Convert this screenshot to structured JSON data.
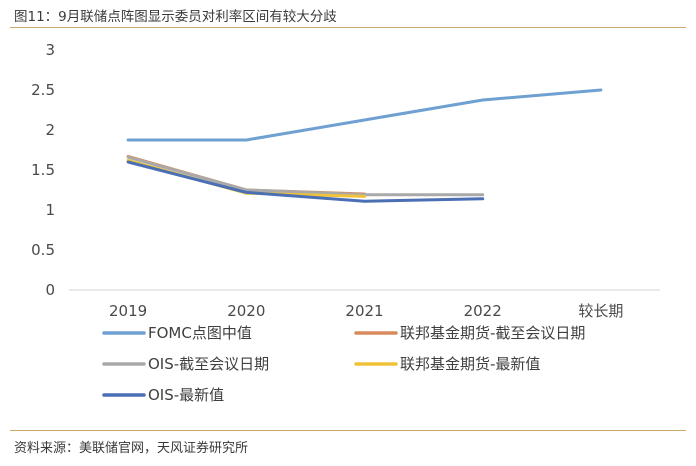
{
  "title": "图11：9月联储点阵图显示委员对利率区间有较大分歧",
  "source": "资料来源：美联储官网，天风证券研究所",
  "chart_data": {
    "type": "line",
    "categories": [
      "2019",
      "2020",
      "2021",
      "2022",
      "较长期"
    ],
    "ylim": [
      0,
      3
    ],
    "yticks": [
      "0",
      "0.5",
      "1",
      "1.5",
      "2",
      "2.5",
      "3"
    ],
    "grid": false,
    "legend_position": "bottom",
    "series": [
      {
        "name": "FOMC点图中值",
        "color": "#6fa0d2",
        "values": [
          1.875,
          1.875,
          2.125,
          2.375,
          2.5
        ]
      },
      {
        "name": "联邦基金期货-截至会议日期",
        "color": "#d98a5a",
        "values": [
          1.67,
          1.25,
          1.2,
          null,
          null
        ]
      },
      {
        "name": "OIS-截至会议日期",
        "color": "#a9a9a9",
        "values": [
          1.66,
          1.25,
          1.19,
          1.19,
          null
        ]
      },
      {
        "name": "联邦基金期货-最新值",
        "color": "#efc23a",
        "values": [
          1.62,
          1.21,
          1.17,
          null,
          null
        ]
      },
      {
        "name": "OIS-最新值",
        "color": "#4a6fb5",
        "values": [
          1.6,
          1.22,
          1.11,
          1.14,
          null
        ]
      }
    ]
  }
}
